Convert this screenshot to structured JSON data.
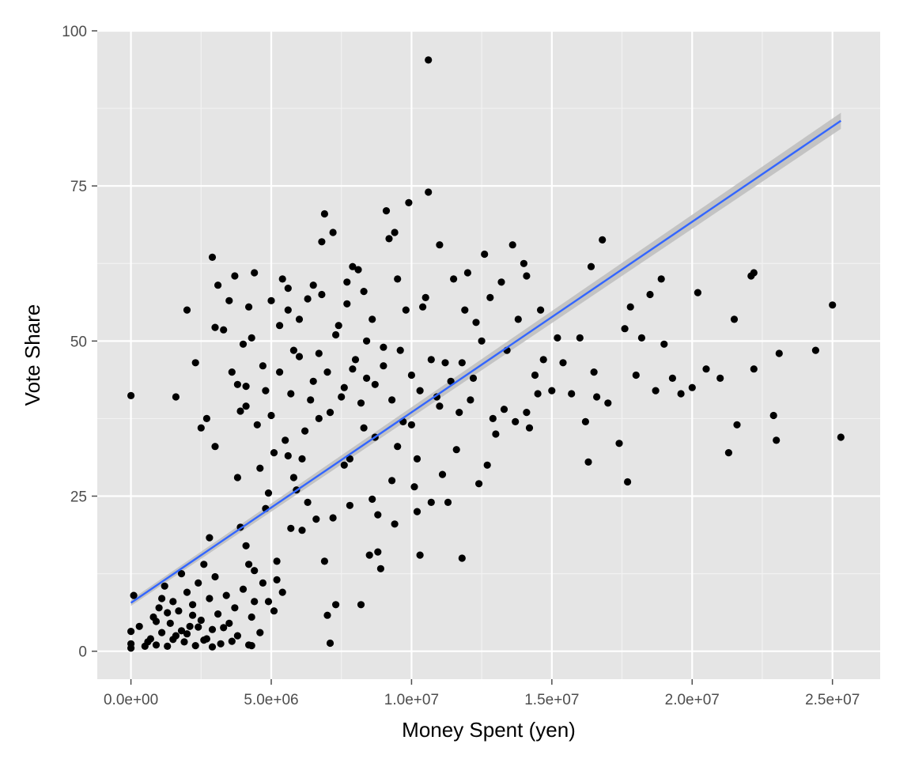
{
  "chart_data": {
    "type": "scatter",
    "title": "",
    "xlabel": "Money Spent (yen)",
    "ylabel": "Vote Share",
    "xlim": [
      -1200000,
      26700000
    ],
    "ylim": [
      -4.5,
      100
    ],
    "x_ticks": [
      0,
      5000000,
      10000000,
      15000000,
      20000000,
      25000000
    ],
    "x_tick_labels": [
      "0.0e+00",
      "5.0e+06",
      "1.0e+07",
      "1.5e+07",
      "2.0e+07",
      "2.5e+07"
    ],
    "y_ticks": [
      0,
      25,
      50,
      75,
      100
    ],
    "y_tick_labels": [
      "0",
      "25",
      "50",
      "75",
      "100"
    ],
    "grid": true,
    "background": "#e5e5e5",
    "point_color": "#000000",
    "fit_line": {
      "type": "linear",
      "x": [
        0,
        25300000
      ],
      "y": [
        7.8,
        85.5
      ],
      "color": "#3366ff",
      "ci_color": "#bdbdbd",
      "ci_halfwidth": [
        0.5,
        1.3
      ]
    },
    "series": [
      {
        "points": [
          [
            0,
            41.2
          ],
          [
            0,
            3.2
          ],
          [
            0,
            0.5
          ],
          [
            0,
            1.2
          ],
          [
            100000,
            9.0
          ],
          [
            300000,
            4.0
          ],
          [
            500000,
            0.8
          ],
          [
            1600000,
            41.0
          ],
          [
            2000000,
            55.0
          ],
          [
            2300000,
            46.5
          ],
          [
            2500000,
            36.0
          ],
          [
            2700000,
            37.5
          ],
          [
            2800000,
            18.3
          ],
          [
            2900000,
            63.5
          ],
          [
            3000000,
            52.2
          ],
          [
            3000000,
            33.0
          ],
          [
            3100000,
            59.0
          ],
          [
            3300000,
            51.8
          ],
          [
            3500000,
            56.5
          ],
          [
            3600000,
            45.0
          ],
          [
            3700000,
            60.5
          ],
          [
            3800000,
            28.0
          ],
          [
            3900000,
            38.7
          ],
          [
            4000000,
            49.5
          ],
          [
            4100000,
            42.7
          ],
          [
            4200000,
            55.5
          ],
          [
            4400000,
            61.0
          ],
          [
            4500000,
            36.5
          ],
          [
            4600000,
            29.5
          ],
          [
            4800000,
            42.0
          ],
          [
            4900000,
            25.5
          ],
          [
            5000000,
            56.5
          ],
          [
            5100000,
            32.0
          ],
          [
            5200000,
            14.5
          ],
          [
            5300000,
            45.0
          ],
          [
            5400000,
            60.0
          ],
          [
            5500000,
            34.0
          ],
          [
            5600000,
            55.0
          ],
          [
            5700000,
            19.8
          ],
          [
            5800000,
            48.5
          ],
          [
            5900000,
            26.0
          ],
          [
            6000000,
            53.5
          ],
          [
            6100000,
            31.0
          ],
          [
            6300000,
            56.8
          ],
          [
            6400000,
            40.5
          ],
          [
            6500000,
            59.0
          ],
          [
            6600000,
            21.3
          ],
          [
            6700000,
            37.5
          ],
          [
            6800000,
            66.0
          ],
          [
            6900000,
            70.5
          ],
          [
            7000000,
            45.0
          ],
          [
            7000000,
            5.8
          ],
          [
            7100000,
            1.3
          ],
          [
            7200000,
            67.5
          ],
          [
            7300000,
            7.5
          ],
          [
            7400000,
            52.5
          ],
          [
            7500000,
            41.0
          ],
          [
            7600000,
            30.0
          ],
          [
            7700000,
            56.0
          ],
          [
            7800000,
            23.5
          ],
          [
            7900000,
            62.0
          ],
          [
            8000000,
            47.0
          ],
          [
            8100000,
            61.5
          ],
          [
            8200000,
            7.5
          ],
          [
            8300000,
            36.0
          ],
          [
            8400000,
            44.0
          ],
          [
            8500000,
            15.5
          ],
          [
            8600000,
            53.5
          ],
          [
            8700000,
            34.5
          ],
          [
            8800000,
            22.0
          ],
          [
            8900000,
            13.3
          ],
          [
            9000000,
            49.0
          ],
          [
            9100000,
            71.0
          ],
          [
            9200000,
            66.5
          ],
          [
            9300000,
            27.5
          ],
          [
            9400000,
            67.5
          ],
          [
            9500000,
            33.0
          ],
          [
            9700000,
            37.0
          ],
          [
            9800000,
            55.0
          ],
          [
            9900000,
            72.3
          ],
          [
            10000000,
            44.5
          ],
          [
            10100000,
            26.5
          ],
          [
            10200000,
            31.0
          ],
          [
            10300000,
            15.5
          ],
          [
            10500000,
            57.0
          ],
          [
            10600000,
            74.0
          ],
          [
            10600000,
            95.3
          ],
          [
            10700000,
            24.0
          ],
          [
            10900000,
            41.0
          ],
          [
            11000000,
            65.5
          ],
          [
            11100000,
            28.5
          ],
          [
            11200000,
            46.5
          ],
          [
            11300000,
            24.0
          ],
          [
            11500000,
            60.0
          ],
          [
            11700000,
            38.5
          ],
          [
            11800000,
            15.0
          ],
          [
            12000000,
            61.0
          ],
          [
            12200000,
            44.0
          ],
          [
            12400000,
            27.0
          ],
          [
            12600000,
            64.0
          ],
          [
            12800000,
            57.0
          ],
          [
            13000000,
            35.0
          ],
          [
            13200000,
            59.5
          ],
          [
            13400000,
            48.5
          ],
          [
            13600000,
            65.5
          ],
          [
            13800000,
            53.5
          ],
          [
            14000000,
            62.5
          ],
          [
            14100000,
            60.5
          ],
          [
            14200000,
            36.0
          ],
          [
            14400000,
            44.5
          ],
          [
            14600000,
            55.0
          ],
          [
            14700000,
            47.0
          ],
          [
            15000000,
            42.0
          ],
          [
            15200000,
            50.5
          ],
          [
            15400000,
            46.5
          ],
          [
            15700000,
            41.5
          ],
          [
            16000000,
            50.5
          ],
          [
            16200000,
            37.0
          ],
          [
            16300000,
            30.5
          ],
          [
            16400000,
            62.0
          ],
          [
            16500000,
            45.0
          ],
          [
            16600000,
            41.0
          ],
          [
            16800000,
            66.3
          ],
          [
            17000000,
            40.0
          ],
          [
            17400000,
            33.5
          ],
          [
            17600000,
            52.0
          ],
          [
            17700000,
            27.3
          ],
          [
            17800000,
            55.5
          ],
          [
            18000000,
            44.5
          ],
          [
            18200000,
            50.5
          ],
          [
            18500000,
            57.5
          ],
          [
            18700000,
            42.0
          ],
          [
            18900000,
            60.0
          ],
          [
            19000000,
            49.5
          ],
          [
            19300000,
            44.0
          ],
          [
            19600000,
            41.5
          ],
          [
            20000000,
            42.5
          ],
          [
            20200000,
            57.8
          ],
          [
            20500000,
            45.5
          ],
          [
            21000000,
            44.0
          ],
          [
            21300000,
            32.0
          ],
          [
            21500000,
            53.5
          ],
          [
            21600000,
            36.5
          ],
          [
            22100000,
            60.5
          ],
          [
            22200000,
            61.0
          ],
          [
            22200000,
            45.5
          ],
          [
            22900000,
            38.0
          ],
          [
            23000000,
            34.0
          ],
          [
            23100000,
            48.0
          ],
          [
            24400000,
            48.5
          ],
          [
            25000000,
            55.8
          ],
          [
            25300000,
            34.5
          ],
          [
            700000,
            2.0
          ],
          [
            800000,
            5.5
          ],
          [
            900000,
            1.0
          ],
          [
            1000000,
            7.0
          ],
          [
            1100000,
            3.0
          ],
          [
            1200000,
            10.5
          ],
          [
            1300000,
            0.8
          ],
          [
            1400000,
            4.5
          ],
          [
            1500000,
            8.0
          ],
          [
            1600000,
            2.5
          ],
          [
            1700000,
            6.5
          ],
          [
            1800000,
            12.5
          ],
          [
            1900000,
            1.5
          ],
          [
            2000000,
            9.5
          ],
          [
            2100000,
            4.0
          ],
          [
            2200000,
            7.5
          ],
          [
            2300000,
            0.9
          ],
          [
            2400000,
            11.0
          ],
          [
            2500000,
            5.0
          ],
          [
            2600000,
            14.0
          ],
          [
            2700000,
            2.0
          ],
          [
            2800000,
            8.5
          ],
          [
            2900000,
            3.5
          ],
          [
            3000000,
            12.0
          ],
          [
            3100000,
            6.0
          ],
          [
            3200000,
            1.2
          ],
          [
            3400000,
            9.0
          ],
          [
            3500000,
            4.5
          ],
          [
            3700000,
            7.0
          ],
          [
            3800000,
            2.5
          ],
          [
            4000000,
            10.0
          ],
          [
            4100000,
            17.0
          ],
          [
            4200000,
            1.0
          ],
          [
            4300000,
            5.5
          ],
          [
            4400000,
            13.0
          ],
          [
            4600000,
            3.0
          ],
          [
            4700000,
            11.0
          ],
          [
            4900000,
            8.0
          ],
          [
            5100000,
            6.5
          ],
          [
            5400000,
            9.5
          ],
          [
            900000,
            4.8
          ],
          [
            1300000,
            6.2
          ],
          [
            1800000,
            3.3
          ],
          [
            2200000,
            5.8
          ],
          [
            2600000,
            1.8
          ],
          [
            3300000,
            3.8
          ],
          [
            600000,
            1.5
          ],
          [
            1100000,
            8.5
          ],
          [
            1500000,
            1.9
          ],
          [
            2000000,
            2.8
          ],
          [
            2400000,
            3.9
          ],
          [
            2900000,
            0.7
          ],
          [
            3600000,
            1.6
          ],
          [
            4300000,
            0.9
          ],
          [
            3800000,
            43.0
          ],
          [
            4100000,
            39.5
          ],
          [
            4300000,
            50.5
          ],
          [
            4700000,
            46.0
          ],
          [
            5000000,
            38.0
          ],
          [
            5300000,
            52.5
          ],
          [
            5700000,
            41.5
          ],
          [
            6000000,
            47.5
          ],
          [
            6200000,
            35.5
          ],
          [
            6500000,
            43.5
          ],
          [
            6700000,
            48.0
          ],
          [
            7100000,
            38.5
          ],
          [
            7300000,
            51.0
          ],
          [
            7600000,
            42.5
          ],
          [
            7900000,
            45.5
          ],
          [
            8200000,
            40.0
          ],
          [
            8400000,
            50.0
          ],
          [
            8700000,
            43.0
          ],
          [
            9000000,
            46.0
          ],
          [
            9300000,
            40.5
          ],
          [
            9600000,
            48.5
          ],
          [
            10000000,
            36.5
          ],
          [
            10300000,
            42.0
          ],
          [
            10700000,
            47.0
          ],
          [
            11000000,
            39.5
          ],
          [
            11400000,
            43.5
          ],
          [
            11800000,
            46.5
          ],
          [
            12100000,
            40.5
          ],
          [
            12500000,
            50.0
          ],
          [
            12900000,
            37.5
          ],
          [
            13300000,
            39.0
          ],
          [
            13700000,
            37.0
          ],
          [
            14100000,
            38.5
          ],
          [
            14500000,
            41.5
          ],
          [
            5600000,
            58.5
          ],
          [
            6800000,
            57.5
          ],
          [
            7700000,
            59.5
          ],
          [
            8300000,
            58.0
          ],
          [
            9500000,
            60.0
          ],
          [
            10400000,
            55.5
          ],
          [
            11900000,
            55.0
          ],
          [
            12300000,
            53.0
          ],
          [
            4800000,
            23.0
          ],
          [
            5800000,
            28.0
          ],
          [
            6300000,
            24.0
          ],
          [
            7200000,
            21.5
          ],
          [
            7800000,
            31.0
          ],
          [
            8600000,
            24.5
          ],
          [
            9400000,
            20.5
          ],
          [
            10200000,
            22.5
          ],
          [
            11600000,
            32.5
          ],
          [
            12700000,
            30.0
          ],
          [
            6900000,
            14.5
          ],
          [
            8800000,
            16.0
          ],
          [
            3900000,
            20.0
          ],
          [
            4200000,
            14.0
          ],
          [
            4400000,
            8.0
          ],
          [
            5200000,
            11.5
          ],
          [
            5600000,
            31.5
          ],
          [
            6100000,
            19.5
          ]
        ]
      }
    ]
  }
}
